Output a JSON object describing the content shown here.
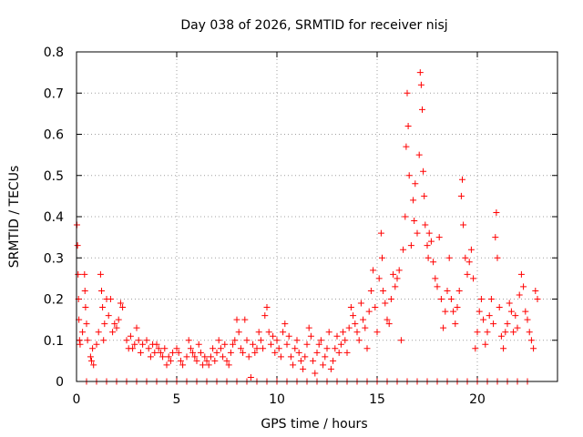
{
  "chart_data": {
    "type": "scatter",
    "title": "Day 038 of 2026, SRMTID for receiver nisj",
    "xlabel": "GPS time / hours",
    "ylabel": "SRMTID / TECUs",
    "xlim": [
      0,
      24
    ],
    "ylim": [
      0,
      0.8
    ],
    "xticks": [
      0,
      5,
      10,
      15,
      20
    ],
    "xtick_labels": [
      "0",
      "5",
      "10",
      "15",
      "20"
    ],
    "yticks": [
      0,
      0.1,
      0.2,
      0.3,
      0.4,
      0.5,
      0.6,
      0.7,
      0.8
    ],
    "ytick_labels": [
      "0",
      "0.1",
      "0.2",
      "0.3",
      "0.4",
      "0.5",
      "0.6",
      "0.7",
      "0.8"
    ],
    "grid": true,
    "marker": "+",
    "color": "#ff0000",
    "series": [
      {
        "name": "SRMTID",
        "points": [
          [
            0.02,
            0.38
          ],
          [
            0.05,
            0.33
          ],
          [
            0.08,
            0.26
          ],
          [
            0.1,
            0.2
          ],
          [
            0.12,
            0.15
          ],
          [
            0.15,
            0.1
          ],
          [
            0.18,
            0.09
          ],
          [
            0.3,
            0.12
          ],
          [
            0.4,
            0.26
          ],
          [
            0.42,
            0.22
          ],
          [
            0.45,
            0.18
          ],
          [
            0.5,
            0.14
          ],
          [
            0.55,
            0.1
          ],
          [
            0.7,
            0.06
          ],
          [
            0.75,
            0.05
          ],
          [
            0.8,
            0.08
          ],
          [
            0.85,
            0.04
          ],
          [
            1.0,
            0.09
          ],
          [
            1.1,
            0.12
          ],
          [
            1.2,
            0.26
          ],
          [
            1.25,
            0.22
          ],
          [
            1.3,
            0.18
          ],
          [
            1.35,
            0.1
          ],
          [
            1.4,
            0.14
          ],
          [
            1.5,
            0.2
          ],
          [
            1.6,
            0.16
          ],
          [
            1.7,
            0.2
          ],
          [
            1.8,
            0.12
          ],
          [
            1.9,
            0.14
          ],
          [
            2.0,
            0.13
          ],
          [
            2.1,
            0.15
          ],
          [
            2.2,
            0.19
          ],
          [
            2.3,
            0.18
          ],
          [
            2.5,
            0.1
          ],
          [
            2.6,
            0.08
          ],
          [
            2.7,
            0.11
          ],
          [
            2.8,
            0.08
          ],
          [
            2.9,
            0.09
          ],
          [
            3.0,
            0.13
          ],
          [
            3.1,
            0.1
          ],
          [
            3.2,
            0.07
          ],
          [
            3.3,
            0.09
          ],
          [
            3.5,
            0.1
          ],
          [
            3.6,
            0.08
          ],
          [
            3.7,
            0.06
          ],
          [
            3.8,
            0.09
          ],
          [
            3.9,
            0.07
          ],
          [
            4.0,
            0.09
          ],
          [
            4.1,
            0.08
          ],
          [
            4.2,
            0.07
          ],
          [
            4.3,
            0.06
          ],
          [
            4.4,
            0.08
          ],
          [
            4.5,
            0.04
          ],
          [
            4.6,
            0.06
          ],
          [
            4.7,
            0.05
          ],
          [
            4.8,
            0.07
          ],
          [
            5.0,
            0.08
          ],
          [
            5.1,
            0.07
          ],
          [
            5.2,
            0.05
          ],
          [
            5.3,
            0.04
          ],
          [
            5.5,
            0.06
          ],
          [
            5.6,
            0.1
          ],
          [
            5.7,
            0.08
          ],
          [
            5.8,
            0.07
          ],
          [
            5.9,
            0.06
          ],
          [
            6.0,
            0.05
          ],
          [
            6.1,
            0.09
          ],
          [
            6.2,
            0.07
          ],
          [
            6.3,
            0.04
          ],
          [
            6.4,
            0.06
          ],
          [
            6.5,
            0.05
          ],
          [
            6.6,
            0.04
          ],
          [
            6.7,
            0.06
          ],
          [
            6.8,
            0.08
          ],
          [
            6.9,
            0.05
          ],
          [
            7.0,
            0.07
          ],
          [
            7.1,
            0.1
          ],
          [
            7.2,
            0.08
          ],
          [
            7.3,
            0.06
          ],
          [
            7.4,
            0.09
          ],
          [
            7.5,
            0.05
          ],
          [
            7.6,
            0.04
          ],
          [
            7.7,
            0.07
          ],
          [
            7.8,
            0.09
          ],
          [
            7.9,
            0.1
          ],
          [
            8.0,
            0.15
          ],
          [
            8.1,
            0.12
          ],
          [
            8.2,
            0.08
          ],
          [
            8.3,
            0.07
          ],
          [
            8.4,
            0.15
          ],
          [
            8.5,
            0.1
          ],
          [
            8.6,
            0.06
          ],
          [
            8.7,
            0.01
          ],
          [
            8.8,
            0.09
          ],
          [
            8.9,
            0.07
          ],
          [
            9.0,
            0.08
          ],
          [
            9.1,
            0.12
          ],
          [
            9.2,
            0.1
          ],
          [
            9.3,
            0.08
          ],
          [
            9.4,
            0.16
          ],
          [
            9.5,
            0.18
          ],
          [
            9.6,
            0.12
          ],
          [
            9.7,
            0.09
          ],
          [
            9.8,
            0.11
          ],
          [
            9.9,
            0.07
          ],
          [
            10.0,
            0.1
          ],
          [
            10.1,
            0.08
          ],
          [
            10.2,
            0.06
          ],
          [
            10.3,
            0.12
          ],
          [
            10.4,
            0.14
          ],
          [
            10.5,
            0.09
          ],
          [
            10.6,
            0.11
          ],
          [
            10.7,
            0.06
          ],
          [
            10.8,
            0.04
          ],
          [
            10.9,
            0.08
          ],
          [
            11.0,
            0.1
          ],
          [
            11.1,
            0.07
          ],
          [
            11.2,
            0.05
          ],
          [
            11.3,
            0.03
          ],
          [
            11.4,
            0.06
          ],
          [
            11.5,
            0.09
          ],
          [
            11.6,
            0.13
          ],
          [
            11.7,
            0.11
          ],
          [
            11.8,
            0.05
          ],
          [
            11.9,
            0.02
          ],
          [
            12.0,
            0.07
          ],
          [
            12.1,
            0.09
          ],
          [
            12.2,
            0.1
          ],
          [
            12.3,
            0.04
          ],
          [
            12.4,
            0.06
          ],
          [
            12.5,
            0.08
          ],
          [
            12.6,
            0.12
          ],
          [
            12.7,
            0.03
          ],
          [
            12.8,
            0.05
          ],
          [
            12.9,
            0.08
          ],
          [
            13.0,
            0.11
          ],
          [
            13.1,
            0.07
          ],
          [
            13.2,
            0.09
          ],
          [
            13.3,
            0.12
          ],
          [
            13.4,
            0.1
          ],
          [
            13.5,
            0.07
          ],
          [
            13.6,
            0.13
          ],
          [
            13.7,
            0.18
          ],
          [
            13.8,
            0.16
          ],
          [
            13.9,
            0.14
          ],
          [
            14.0,
            0.12
          ],
          [
            14.1,
            0.1
          ],
          [
            14.2,
            0.19
          ],
          [
            14.3,
            0.15
          ],
          [
            14.4,
            0.13
          ],
          [
            14.5,
            0.08
          ],
          [
            14.6,
            0.17
          ],
          [
            14.7,
            0.22
          ],
          [
            14.8,
            0.27
          ],
          [
            14.9,
            0.18
          ],
          [
            15.0,
            0.12
          ],
          [
            15.1,
            0.25
          ],
          [
            15.2,
            0.36
          ],
          [
            15.25,
            0.3
          ],
          [
            15.3,
            0.22
          ],
          [
            15.4,
            0.19
          ],
          [
            15.5,
            0.15
          ],
          [
            15.6,
            0.14
          ],
          [
            15.7,
            0.2
          ],
          [
            15.8,
            0.26
          ],
          [
            15.9,
            0.23
          ],
          [
            16.0,
            0.25
          ],
          [
            16.1,
            0.27
          ],
          [
            16.2,
            0.1
          ],
          [
            16.3,
            0.32
          ],
          [
            16.4,
            0.4
          ],
          [
            16.45,
            0.57
          ],
          [
            16.5,
            0.7
          ],
          [
            16.55,
            0.62
          ],
          [
            16.6,
            0.5
          ],
          [
            16.7,
            0.33
          ],
          [
            16.8,
            0.44
          ],
          [
            16.85,
            0.39
          ],
          [
            16.9,
            0.48
          ],
          [
            17.0,
            0.36
          ],
          [
            17.1,
            0.55
          ],
          [
            17.15,
            0.75
          ],
          [
            17.2,
            0.72
          ],
          [
            17.25,
            0.66
          ],
          [
            17.3,
            0.51
          ],
          [
            17.35,
            0.45
          ],
          [
            17.4,
            0.38
          ],
          [
            17.5,
            0.33
          ],
          [
            17.55,
            0.3
          ],
          [
            17.6,
            0.36
          ],
          [
            17.7,
            0.34
          ],
          [
            17.8,
            0.29
          ],
          [
            17.9,
            0.25
          ],
          [
            18.0,
            0.23
          ],
          [
            18.1,
            0.35
          ],
          [
            18.2,
            0.2
          ],
          [
            18.3,
            0.13
          ],
          [
            18.4,
            0.17
          ],
          [
            18.5,
            0.22
          ],
          [
            18.6,
            0.3
          ],
          [
            18.7,
            0.2
          ],
          [
            18.8,
            0.17
          ],
          [
            18.9,
            0.14
          ],
          [
            19.0,
            0.18
          ],
          [
            19.1,
            0.22
          ],
          [
            19.2,
            0.45
          ],
          [
            19.25,
            0.49
          ],
          [
            19.3,
            0.38
          ],
          [
            19.4,
            0.3
          ],
          [
            19.5,
            0.26
          ],
          [
            19.6,
            0.29
          ],
          [
            19.7,
            0.32
          ],
          [
            19.8,
            0.25
          ],
          [
            19.9,
            0.08
          ],
          [
            20.0,
            0.12
          ],
          [
            20.1,
            0.17
          ],
          [
            20.2,
            0.2
          ],
          [
            20.3,
            0.15
          ],
          [
            20.4,
            0.09
          ],
          [
            20.5,
            0.12
          ],
          [
            20.6,
            0.16
          ],
          [
            20.7,
            0.2
          ],
          [
            20.8,
            0.14
          ],
          [
            20.9,
            0.35
          ],
          [
            20.95,
            0.41
          ],
          [
            21.0,
            0.3
          ],
          [
            21.1,
            0.18
          ],
          [
            21.2,
            0.11
          ],
          [
            21.3,
            0.08
          ],
          [
            21.4,
            0.12
          ],
          [
            21.5,
            0.14
          ],
          [
            21.6,
            0.19
          ],
          [
            21.7,
            0.17
          ],
          [
            21.8,
            0.12
          ],
          [
            21.9,
            0.16
          ],
          [
            22.0,
            0.13
          ],
          [
            22.1,
            0.21
          ],
          [
            22.2,
            0.26
          ],
          [
            22.3,
            0.23
          ],
          [
            22.4,
            0.17
          ],
          [
            22.5,
            0.15
          ],
          [
            22.6,
            0.12
          ],
          [
            22.7,
            0.1
          ],
          [
            22.8,
            0.08
          ],
          [
            22.9,
            0.22
          ],
          [
            23.0,
            0.2
          ],
          [
            0.5,
            0.0
          ],
          [
            1.0,
            0.0
          ],
          [
            1.5,
            0.0
          ],
          [
            2.0,
            0.0
          ],
          [
            2.5,
            0.0
          ],
          [
            3.0,
            0.0
          ],
          [
            3.5,
            0.0
          ],
          [
            4.0,
            0.0
          ],
          [
            4.5,
            0.0
          ],
          [
            5.0,
            0.0
          ],
          [
            5.5,
            0.0
          ],
          [
            6.0,
            0.0
          ],
          [
            6.5,
            0.0
          ],
          [
            7.0,
            0.0
          ],
          [
            7.5,
            0.0
          ],
          [
            8.0,
            0.0
          ],
          [
            8.5,
            0.0
          ],
          [
            9.0,
            0.0
          ],
          [
            9.5,
            0.0
          ],
          [
            10.0,
            0.0
          ],
          [
            10.5,
            0.0
          ],
          [
            11.0,
            0.0
          ],
          [
            11.5,
            0.0
          ],
          [
            12.0,
            0.0
          ],
          [
            12.5,
            0.0
          ],
          [
            13.0,
            0.0
          ],
          [
            13.5,
            0.0
          ],
          [
            14.0,
            0.0
          ],
          [
            14.5,
            0.0
          ],
          [
            15.0,
            0.0
          ],
          [
            15.5,
            0.0
          ],
          [
            16.0,
            0.0
          ],
          [
            16.5,
            0.0
          ],
          [
            17.0,
            0.0
          ],
          [
            17.5,
            0.0
          ],
          [
            18.0,
            0.0
          ],
          [
            18.5,
            0.0
          ],
          [
            19.0,
            0.0
          ],
          [
            19.5,
            0.0
          ],
          [
            20.0,
            0.0
          ],
          [
            20.5,
            0.0
          ],
          [
            21.0,
            0.0
          ],
          [
            21.5,
            0.0
          ],
          [
            22.0,
            0.0
          ],
          [
            22.5,
            0.0
          ]
        ]
      }
    ]
  }
}
